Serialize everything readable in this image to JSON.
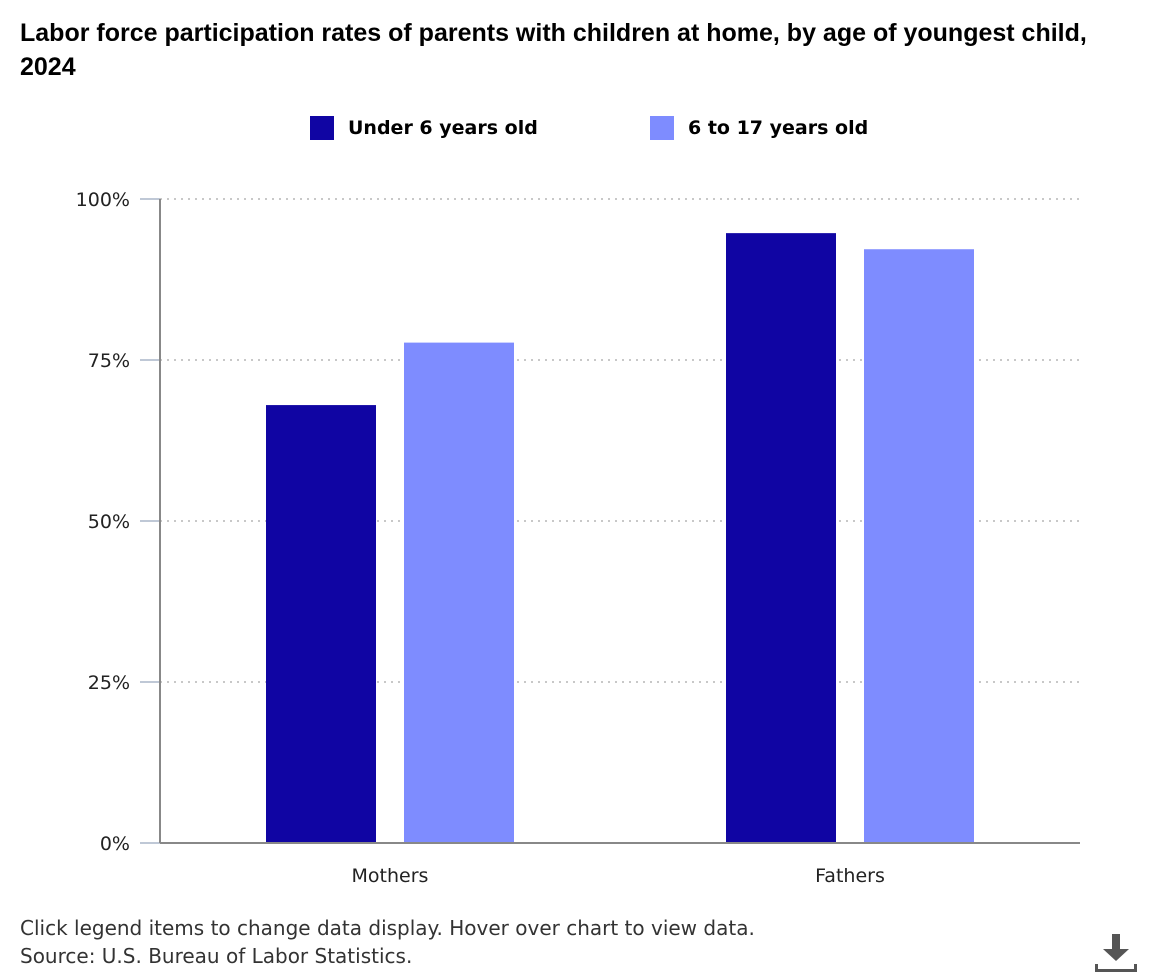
{
  "title": "Labor force participation rates of parents with children at home, by age of youngest child, 2024",
  "legend": [
    {
      "label": "Under 6 years old",
      "color": "#1005a3"
    },
    {
      "label": "6 to 17 years old",
      "color": "#7e8cff"
    }
  ],
  "footer": {
    "note": "Click legend items to change data display. Hover over chart to view data.",
    "source": "Source: U.S. Bureau of Labor Statistics."
  },
  "icons": {
    "download": "download-icon"
  },
  "chart_data": {
    "type": "bar",
    "title": "Labor force participation rates of parents with children at home, by age of youngest child, 2024",
    "categories": [
      "Mothers",
      "Fathers"
    ],
    "series": [
      {
        "name": "Under 6 years old",
        "color": "#1005a3",
        "values": [
          68.0,
          94.7
        ]
      },
      {
        "name": "6 to 17 years old",
        "color": "#7e8cff",
        "values": [
          77.7,
          92.2
        ]
      }
    ],
    "ylim": [
      0,
      100
    ],
    "yticks": [
      0,
      25,
      50,
      75,
      100
    ],
    "ytick_labels": [
      "0%",
      "25%",
      "50%",
      "75%",
      "100%"
    ],
    "xlabel": "",
    "ylabel": "",
    "grid": true,
    "legend_position": "top"
  }
}
